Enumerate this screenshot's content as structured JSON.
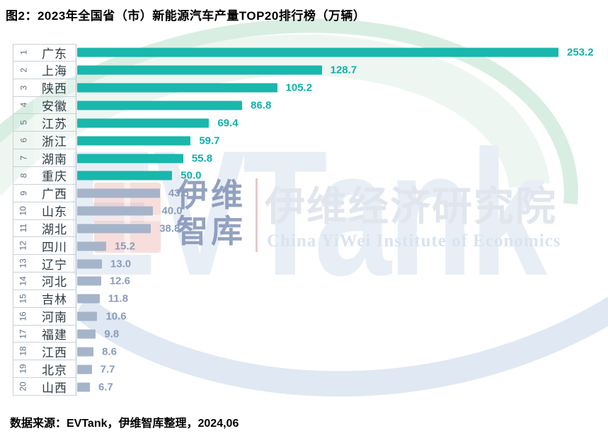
{
  "title": "图2：2023年全国省（市）新能源汽车产量TOP20排行榜（万辆）",
  "source_note": "数据来源：EVTank，伊维智库整理，2024,06",
  "watermark": {
    "brand_text": "EVTank",
    "cn_small_line1": "伊维",
    "cn_small_line2": "智库",
    "cn_large": "伊维经济研究院",
    "en_subtitle": "China YiWei Institute of Economics"
  },
  "colors": {
    "bar_top": "#19b7ac",
    "bar_rest": "#a6b4c9",
    "value_label_top": "#10b0aa",
    "value_label_rest": "#8b9cba",
    "watermark_green_ring": "#d9eee3",
    "watermark_blue_swoosh": "#dfe8f3"
  },
  "chart_data": {
    "type": "bar",
    "orientation": "horizontal",
    "title": "2023年全国省（市）新能源汽车产量TOP20排行榜（万辆）",
    "unit": "万辆",
    "ranks": [
      1,
      2,
      3,
      4,
      5,
      6,
      7,
      8,
      9,
      10,
      11,
      12,
      13,
      14,
      15,
      16,
      17,
      18,
      19,
      20
    ],
    "categories": [
      "广东",
      "上海",
      "陕西",
      "安徽",
      "江苏",
      "浙江",
      "湖南",
      "重庆",
      "广西",
      "山东",
      "湖北",
      "四川",
      "辽宁",
      "河北",
      "吉林",
      "河南",
      "福建",
      "江西",
      "北京",
      "山西"
    ],
    "values": [
      253.2,
      128.7,
      105.2,
      86.8,
      69.4,
      59.7,
      55.8,
      50.0,
      43.5,
      40.0,
      38.8,
      15.2,
      13.0,
      12.6,
      11.8,
      10.6,
      9.8,
      8.6,
      7.7,
      6.7
    ],
    "value_labels": [
      "253.2",
      "128.7",
      "105.2",
      "86.8",
      "69.4",
      "59.7",
      "55.8",
      "50.0",
      "43.5",
      "40.0",
      "38.8",
      "15.2",
      "13.0",
      "12.6",
      "11.8",
      "10.6",
      "9.8",
      "8.6",
      "7.7",
      "6.7"
    ],
    "highlight_top_n": 8,
    "xlim": [
      0,
      260
    ],
    "grid": false,
    "legend": "none",
    "value_labels_position": "end-of-bar"
  }
}
